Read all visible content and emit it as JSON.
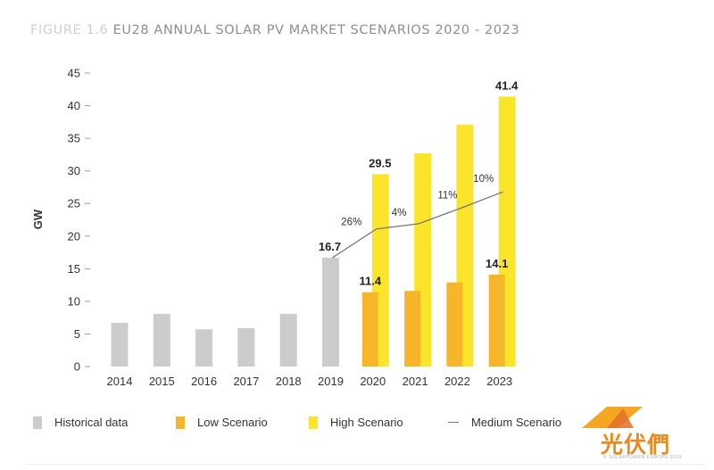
{
  "title": {
    "figure_label": "FIGURE 1.6",
    "text": "EU28 ANNUAL SOLAR PV MARKET SCENARIOS 2020 - 2023"
  },
  "chart_data": {
    "type": "bar",
    "title": "EU28 ANNUAL SOLAR PV MARKET SCENARIOS 2020 - 2023",
    "xlabel": "",
    "ylabel": "GW",
    "ylim": [
      0,
      45
    ],
    "yticks": [
      0,
      5,
      10,
      15,
      20,
      25,
      30,
      35,
      40,
      45
    ],
    "grid": false,
    "legend_position": "bottom",
    "categories": [
      "2014",
      "2015",
      "2016",
      "2017",
      "2018",
      "2019",
      "2020",
      "2021",
      "2022",
      "2023"
    ],
    "series": [
      {
        "name": "Historical data",
        "type": "bar",
        "color": "#cccccc",
        "values": [
          6.7,
          8.1,
          5.7,
          5.9,
          8.1,
          16.7,
          null,
          null,
          null,
          null
        ]
      },
      {
        "name": "Low Scenario",
        "type": "bar",
        "color": "#f7b52a",
        "values": [
          null,
          null,
          null,
          null,
          null,
          null,
          11.4,
          11.6,
          12.9,
          14.1
        ]
      },
      {
        "name": "High Scenario",
        "type": "bar",
        "color": "#fbe52b",
        "values": [
          null,
          null,
          null,
          null,
          null,
          null,
          29.5,
          32.7,
          37.1,
          41.4
        ]
      },
      {
        "name": "Medium Scenario",
        "type": "line",
        "color": "#777777",
        "values": [
          null,
          null,
          null,
          null,
          null,
          16.7,
          21.1,
          21.9,
          24.3,
          26.8
        ]
      }
    ],
    "data_labels": [
      {
        "category": "2019",
        "series": "Historical data",
        "text": "16.7"
      },
      {
        "category": "2020",
        "series": "High Scenario",
        "text": "29.5"
      },
      {
        "category": "2023",
        "series": "High Scenario",
        "text": "41.4"
      },
      {
        "category": "2020",
        "series": "Low Scenario",
        "text": "11.4"
      },
      {
        "category": "2023",
        "series": "Low Scenario",
        "text": "14.1"
      }
    ],
    "growth_labels": [
      {
        "category": "2020",
        "text": "26%"
      },
      {
        "category": "2021",
        "text": "4%"
      },
      {
        "category": "2022",
        "text": "11%"
      },
      {
        "category": "2023",
        "text": "10%"
      }
    ]
  },
  "legend": [
    {
      "label": "Historical data",
      "kind": "swatch",
      "color": "#cccccc"
    },
    {
      "label": "Low Scenario",
      "kind": "swatch",
      "color": "#f7b52a"
    },
    {
      "label": "High Scenario",
      "kind": "swatch",
      "color": "#fbe52b"
    },
    {
      "label": "Medium Scenario",
      "kind": "line",
      "color": "#777777"
    }
  ],
  "watermark": {
    "text": "光伏們",
    "subtext": "© SOLARPOWER EUROPE 2019"
  }
}
